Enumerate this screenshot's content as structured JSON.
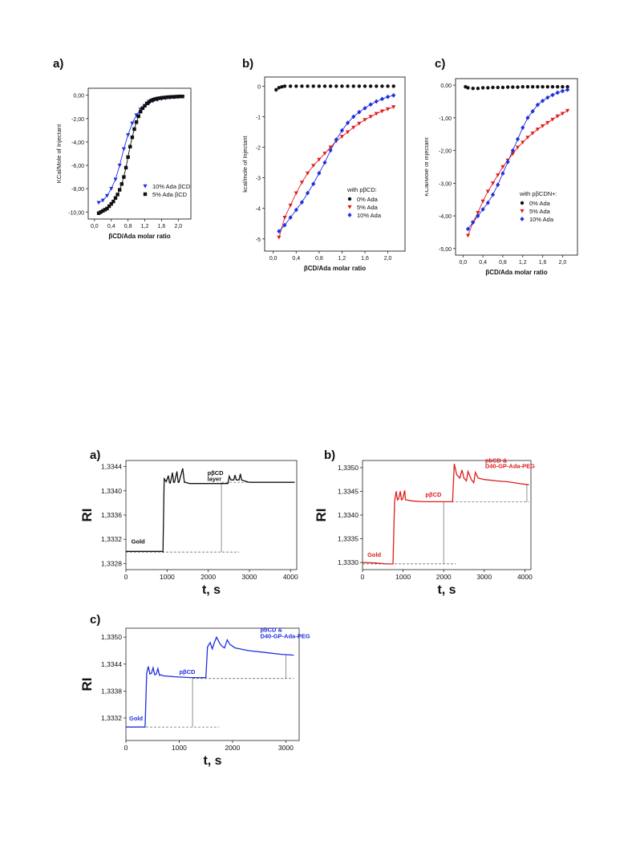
{
  "chart_data": [
    {
      "id": "itc_a",
      "type": "scatter",
      "panel_label": "a)",
      "xlabel": "βCD/Ada molar ratio",
      "ylabel": "KCal/Mole of Injectant",
      "xlim": [
        -0.15,
        2.3
      ],
      "ylim": [
        -10.6,
        0.6
      ],
      "xticks": [
        0,
        0.4,
        0.8,
        1.2,
        1.6,
        2.0
      ],
      "xtick_labels": [
        "0,0",
        "0,4",
        "0,8",
        "1,2",
        "1,6",
        "2,0"
      ],
      "yticks": [
        0,
        -2,
        -4,
        -6,
        -8,
        -10
      ],
      "ytick_labels": [
        "0,00",
        "-2,00",
        "-4,00",
        "-6,00",
        "-8,00",
        "-10,00"
      ],
      "legend_position": "lower-right",
      "series": [
        {
          "name": "10% Ada βCD",
          "color": "#1f2fe0",
          "marker": "triangle-down",
          "x": [
            0.1,
            0.2,
            0.3,
            0.4,
            0.5,
            0.6,
            0.7,
            0.8,
            0.9,
            1.0,
            1.1,
            1.2,
            1.3,
            1.4,
            1.5,
            1.6,
            1.7,
            1.8,
            1.9,
            2.0,
            2.1
          ],
          "y": [
            -9.2,
            -9.0,
            -8.6,
            -8.0,
            -7.2,
            -6.0,
            -4.6,
            -3.4,
            -2.4,
            -1.7,
            -1.2,
            -0.9,
            -0.7,
            -0.5,
            -0.4,
            -0.3,
            -0.25,
            -0.2,
            -0.18,
            -0.15,
            -0.12
          ]
        },
        {
          "name": "5% Ada βCD",
          "color": "#111111",
          "marker": "square",
          "x": [
            0.1,
            0.15,
            0.2,
            0.25,
            0.3,
            0.35,
            0.4,
            0.45,
            0.5,
            0.55,
            0.6,
            0.65,
            0.7,
            0.75,
            0.8,
            0.85,
            0.9,
            0.95,
            1.0,
            1.05,
            1.1,
            1.15,
            1.2,
            1.25,
            1.3,
            1.35,
            1.4,
            1.45,
            1.5,
            1.55,
            1.6,
            1.65,
            1.7,
            1.75,
            1.8,
            1.85,
            1.9,
            1.95,
            2.0,
            2.05,
            2.1
          ],
          "y": [
            -10.1,
            -10.0,
            -9.9,
            -9.8,
            -9.7,
            -9.5,
            -9.3,
            -9.1,
            -8.8,
            -8.5,
            -8.1,
            -7.6,
            -7.0,
            -6.2,
            -5.3,
            -4.4,
            -3.6,
            -2.9,
            -2.3,
            -1.8,
            -1.4,
            -1.1,
            -0.9,
            -0.7,
            -0.55,
            -0.45,
            -0.38,
            -0.32,
            -0.28,
            -0.25,
            -0.22,
            -0.2,
            -0.18,
            -0.16,
            -0.15,
            -0.14,
            -0.13,
            -0.12,
            -0.11,
            -0.1,
            -0.1
          ]
        }
      ]
    },
    {
      "id": "itc_b",
      "type": "scatter",
      "panel_label": "b)",
      "xlabel": "βCD/Ada molar ratio",
      "ylabel": "kcal/mole of Injectant",
      "xlim": [
        -0.15,
        2.3
      ],
      "ylim": [
        -5.4,
        0.3
      ],
      "xticks": [
        0,
        0.4,
        0.8,
        1.2,
        1.6,
        2.0
      ],
      "xtick_labels": [
        "0,0",
        "0,4",
        "0,8",
        "1,2",
        "1,6",
        "2,0"
      ],
      "yticks": [
        0,
        -1,
        -2,
        -3,
        -4,
        -5
      ],
      "ytick_labels": [
        "0",
        "-1",
        "-2",
        "-3",
        "-4",
        "-5"
      ],
      "legend_title": "with pβCD:",
      "legend_position": "lower-right",
      "series": [
        {
          "name": "0% Ada",
          "color": "#111111",
          "marker": "circle",
          "x": [
            0.05,
            0.1,
            0.15,
            0.2,
            0.3,
            0.4,
            0.5,
            0.6,
            0.7,
            0.8,
            0.9,
            1.0,
            1.1,
            1.2,
            1.3,
            1.4,
            1.5,
            1.6,
            1.7,
            1.8,
            1.9,
            2.0,
            2.1
          ],
          "y": [
            -0.12,
            -0.05,
            -0.02,
            0,
            0,
            0,
            0,
            0,
            0,
            0,
            0,
            0,
            0,
            0,
            0,
            0,
            0,
            0,
            0,
            0,
            0,
            0,
            0
          ]
        },
        {
          "name": "5% Ada",
          "color": "#e01b1b",
          "marker": "triangle-down",
          "x": [
            0.1,
            0.2,
            0.3,
            0.4,
            0.5,
            0.6,
            0.7,
            0.8,
            0.9,
            1.0,
            1.1,
            1.2,
            1.3,
            1.4,
            1.5,
            1.6,
            1.7,
            1.8,
            1.9,
            2.0,
            2.1
          ],
          "y": [
            -4.95,
            -4.3,
            -3.9,
            -3.5,
            -3.15,
            -2.85,
            -2.6,
            -2.4,
            -2.2,
            -2.0,
            -1.8,
            -1.65,
            -1.5,
            -1.35,
            -1.22,
            -1.1,
            -1.0,
            -0.9,
            -0.82,
            -0.75,
            -0.68
          ]
        },
        {
          "name": "10% Ada",
          "color": "#1f2fe0",
          "marker": "diamond",
          "x": [
            0.1,
            0.2,
            0.3,
            0.4,
            0.5,
            0.6,
            0.7,
            0.8,
            0.9,
            1.0,
            1.1,
            1.2,
            1.3,
            1.4,
            1.5,
            1.6,
            1.7,
            1.8,
            1.9,
            2.0,
            2.1
          ],
          "y": [
            -4.75,
            -4.55,
            -4.3,
            -4.05,
            -3.8,
            -3.5,
            -3.2,
            -2.85,
            -2.5,
            -2.1,
            -1.75,
            -1.45,
            -1.2,
            -1.0,
            -0.85,
            -0.72,
            -0.6,
            -0.5,
            -0.42,
            -0.35,
            -0.3
          ]
        }
      ]
    },
    {
      "id": "itc_c",
      "type": "scatter",
      "panel_label": "c)",
      "xlabel": "βCD/Ada molar ratio",
      "ylabel": "KCal/Mole of Injectant",
      "xlim": [
        -0.15,
        2.3
      ],
      "ylim": [
        -5.2,
        0.2
      ],
      "xticks": [
        0,
        0.4,
        0.8,
        1.2,
        1.6,
        2.0
      ],
      "xtick_labels": [
        "0,0",
        "0,4",
        "0,8",
        "1,2",
        "1,6",
        "2,0"
      ],
      "yticks": [
        0,
        -1,
        -2,
        -3,
        -4,
        -5
      ],
      "ytick_labels": [
        "0,00",
        "-1,00",
        "-2,00",
        "-3,00",
        "-4,00",
        "-5,00"
      ],
      "legend_title": "with pβCDN+:",
      "legend_position": "lower-right",
      "series": [
        {
          "name": "0% Ada",
          "color": "#111111",
          "marker": "circle",
          "x": [
            0.05,
            0.1,
            0.2,
            0.3,
            0.4,
            0.5,
            0.6,
            0.7,
            0.8,
            0.9,
            1.0,
            1.1,
            1.2,
            1.3,
            1.4,
            1.5,
            1.6,
            1.7,
            1.8,
            1.9,
            2.0,
            2.1
          ],
          "y": [
            -0.05,
            -0.08,
            -0.1,
            -0.1,
            -0.08,
            -0.08,
            -0.07,
            -0.07,
            -0.07,
            -0.06,
            -0.06,
            -0.06,
            -0.05,
            -0.05,
            -0.05,
            -0.05,
            -0.05,
            -0.05,
            -0.05,
            -0.05,
            -0.05,
            -0.05
          ]
        },
        {
          "name": "5% Ada",
          "color": "#e01b1b",
          "marker": "triangle-down",
          "x": [
            0.1,
            0.2,
            0.3,
            0.4,
            0.5,
            0.6,
            0.7,
            0.8,
            0.9,
            1.0,
            1.1,
            1.2,
            1.3,
            1.4,
            1.5,
            1.6,
            1.7,
            1.8,
            1.9,
            2.0,
            2.1
          ],
          "y": [
            -4.6,
            -4.2,
            -3.9,
            -3.55,
            -3.25,
            -3.0,
            -2.75,
            -2.5,
            -2.3,
            -2.1,
            -1.9,
            -1.75,
            -1.6,
            -1.47,
            -1.35,
            -1.25,
            -1.15,
            -1.05,
            -0.95,
            -0.87,
            -0.78
          ]
        },
        {
          "name": "10% Ada",
          "color": "#1f2fe0",
          "marker": "diamond",
          "x": [
            0.1,
            0.2,
            0.3,
            0.4,
            0.5,
            0.6,
            0.7,
            0.8,
            0.9,
            1.0,
            1.1,
            1.2,
            1.3,
            1.4,
            1.5,
            1.6,
            1.7,
            1.8,
            1.9,
            2.0,
            2.1
          ],
          "y": [
            -4.4,
            -4.2,
            -4.0,
            -3.8,
            -3.6,
            -3.35,
            -3.05,
            -2.7,
            -2.35,
            -2.0,
            -1.65,
            -1.3,
            -1.0,
            -0.8,
            -0.6,
            -0.48,
            -0.38,
            -0.3,
            -0.23,
            -0.18,
            -0.14
          ]
        }
      ]
    },
    {
      "id": "spr_a",
      "type": "line",
      "panel_label": "a)",
      "xlabel": "t, s",
      "ylabel": "RI",
      "xlim": [
        0,
        4150
      ],
      "ylim": [
        1.3327,
        1.3345
      ],
      "xticks": [
        0,
        1000,
        2000,
        3000,
        4000
      ],
      "xtick_labels": [
        "0",
        "1000",
        "2000",
        "3000",
        "4000"
      ],
      "yticks": [
        1.3328,
        1.3332,
        1.3336,
        1.334,
        1.3344
      ],
      "ytick_labels": [
        "1,3328",
        "1,3332",
        "1,3336",
        "1,3340",
        "1,3344"
      ],
      "annotations": [
        {
          "text": "Gold",
          "x": 130,
          "y": 1.33313
        },
        {
          "text": "pβCD",
          "x": 1980,
          "y": 1.33426
        },
        {
          "text": "layer",
          "x": 1980,
          "y": 1.33416
        }
      ],
      "series": [
        {
          "name": "",
          "color": "#111111",
          "x": [
            0,
            700,
            870,
            900,
            930,
            980,
            1030,
            1060,
            1080,
            1130,
            1160,
            1180,
            1240,
            1270,
            1290,
            1380,
            1420,
            1440,
            1550,
            1800,
            2300,
            2480,
            2510,
            2550,
            2620,
            2650,
            2680,
            2750,
            2780,
            2810,
            2900,
            3000,
            3200,
            3500,
            4100
          ],
          "y": [
            1.333,
            1.333,
            1.333,
            1.33299,
            1.3342,
            1.33415,
            1.33425,
            1.33413,
            1.33413,
            1.3343,
            1.33414,
            1.33414,
            1.33432,
            1.33414,
            1.33414,
            1.33437,
            1.33414,
            1.33414,
            1.33412,
            1.33412,
            1.33412,
            1.33412,
            1.33424,
            1.33418,
            1.33418,
            1.33426,
            1.33418,
            1.33418,
            1.33428,
            1.33418,
            1.33416,
            1.33414,
            1.33414,
            1.33414,
            1.33414
          ]
        }
      ],
      "reference_lines": [
        {
          "x": [
            0,
            2750
          ],
          "y": [
            1.33299,
            1.33299
          ]
        },
        {
          "x": [
            2320,
            4100
          ],
          "y": [
            1.33414,
            1.33414
          ]
        }
      ],
      "vertical_markers": [
        {
          "x": 2320,
          "y": [
            1.33299,
            1.33412
          ]
        }
      ]
    },
    {
      "id": "spr_b",
      "type": "line",
      "panel_label": "b)",
      "xlabel": "t, s",
      "ylabel": "RI",
      "xlim": [
        0,
        4150
      ],
      "ylim": [
        1.33285,
        1.33515
      ],
      "xticks": [
        0,
        1000,
        2000,
        3000,
        4000
      ],
      "xtick_labels": [
        "0",
        "1000",
        "2000",
        "3000",
        "4000"
      ],
      "yticks": [
        1.333,
        1.3335,
        1.334,
        1.3345,
        1.335
      ],
      "ytick_labels": [
        "1,3330",
        "1,3335",
        "1,3340",
        "1,3345",
        "1,3350"
      ],
      "annotations": [
        {
          "text": "Gold",
          "x": 120,
          "y": 1.33312
        },
        {
          "text": "pβCD",
          "x": 1550,
          "y": 1.33439
        },
        {
          "text": "pbCD &",
          "x": 3020,
          "y": 1.33511
        },
        {
          "text": "D40-GP-Ada-PEG",
          "x": 3020,
          "y": 1.33499
        }
      ],
      "series": [
        {
          "name": "",
          "color": "#e01b1b",
          "x": [
            0,
            300,
            600,
            720,
            750,
            790,
            830,
            860,
            890,
            930,
            960,
            990,
            1040,
            1060,
            1090,
            1200,
            1500,
            1900,
            2180,
            2220,
            2260,
            2320,
            2400,
            2450,
            2500,
            2560,
            2600,
            2680,
            2740,
            2780,
            2850,
            3000,
            3300,
            3600,
            3900,
            4100
          ],
          "y": [
            1.333,
            1.33299,
            1.33297,
            1.33297,
            1.33297,
            1.3343,
            1.3345,
            1.33432,
            1.33434,
            1.3345,
            1.33432,
            1.33434,
            1.33452,
            1.33432,
            1.33432,
            1.3343,
            1.33428,
            1.33428,
            1.33428,
            1.33428,
            1.33508,
            1.33485,
            1.33478,
            1.33495,
            1.33478,
            1.33472,
            1.33492,
            1.33475,
            1.33468,
            1.3349,
            1.33478,
            1.33475,
            1.33472,
            1.3347,
            1.33466,
            1.33464
          ]
        }
      ],
      "reference_lines": [
        {
          "x": [
            0,
            2300
          ],
          "y": [
            1.33297,
            1.33297
          ]
        },
        {
          "x": [
            2000,
            4100
          ],
          "y": [
            1.33428,
            1.33428
          ]
        }
      ],
      "vertical_markers": [
        {
          "x": 2000,
          "y": [
            1.33297,
            1.33428
          ]
        },
        {
          "x": 4050,
          "y": [
            1.33428,
            1.33465
          ]
        }
      ]
    },
    {
      "id": "spr_c",
      "type": "line",
      "panel_label": "c)",
      "xlabel": "t, s",
      "ylabel": "RI",
      "xlim": [
        0,
        3250
      ],
      "ylim": [
        1.3327,
        1.3352
      ],
      "xticks": [
        0,
        1000,
        2000,
        3000
      ],
      "xtick_labels": [
        "0",
        "1000",
        "2000",
        "3000"
      ],
      "yticks": [
        1.3332,
        1.3338,
        1.3344,
        1.335
      ],
      "ytick_labels": [
        "1,3332",
        "1,3338",
        "1,3344",
        "1,3350"
      ],
      "annotations": [
        {
          "text": "Gold",
          "x": 60,
          "y": 1.33315
        },
        {
          "text": "pβCD",
          "x": 1000,
          "y": 1.33418
        },
        {
          "text": "pbCD &",
          "x": 2520,
          "y": 1.33512
        },
        {
          "text": "D40-GP-Ada-PEG",
          "x": 2520,
          "y": 1.33498
        }
      ],
      "series": [
        {
          "name": "",
          "color": "#1f2fe0",
          "x": [
            0,
            200,
            340,
            360,
            390,
            420,
            450,
            480,
            510,
            540,
            570,
            600,
            630,
            660,
            700,
            900,
            1200,
            1450,
            1500,
            1530,
            1580,
            1620,
            1660,
            1700,
            1760,
            1800,
            1850,
            1900,
            1950,
            2050,
            2300,
            2600,
            2900,
            3150
          ],
          "y": [
            1.333,
            1.333,
            1.333,
            1.333,
            1.3342,
            1.33435,
            1.33418,
            1.3342,
            1.33432,
            1.33416,
            1.33418,
            1.3343,
            1.33415,
            1.33416,
            1.33414,
            1.33412,
            1.3341,
            1.3341,
            1.3341,
            1.33478,
            1.33488,
            1.33474,
            1.33488,
            1.335,
            1.33486,
            1.3348,
            1.33476,
            1.33494,
            1.33484,
            1.33476,
            1.3347,
            1.33466,
            1.33462,
            1.3346
          ]
        }
      ],
      "reference_lines": [
        {
          "x": [
            0,
            1750
          ],
          "y": [
            1.333,
            1.333
          ]
        },
        {
          "x": [
            1250,
            3150
          ],
          "y": [
            1.33408,
            1.33408
          ]
        }
      ],
      "vertical_markers": [
        {
          "x": 1250,
          "y": [
            1.333,
            1.33408
          ]
        },
        {
          "x": 3000,
          "y": [
            1.33408,
            1.3346
          ]
        }
      ]
    }
  ]
}
